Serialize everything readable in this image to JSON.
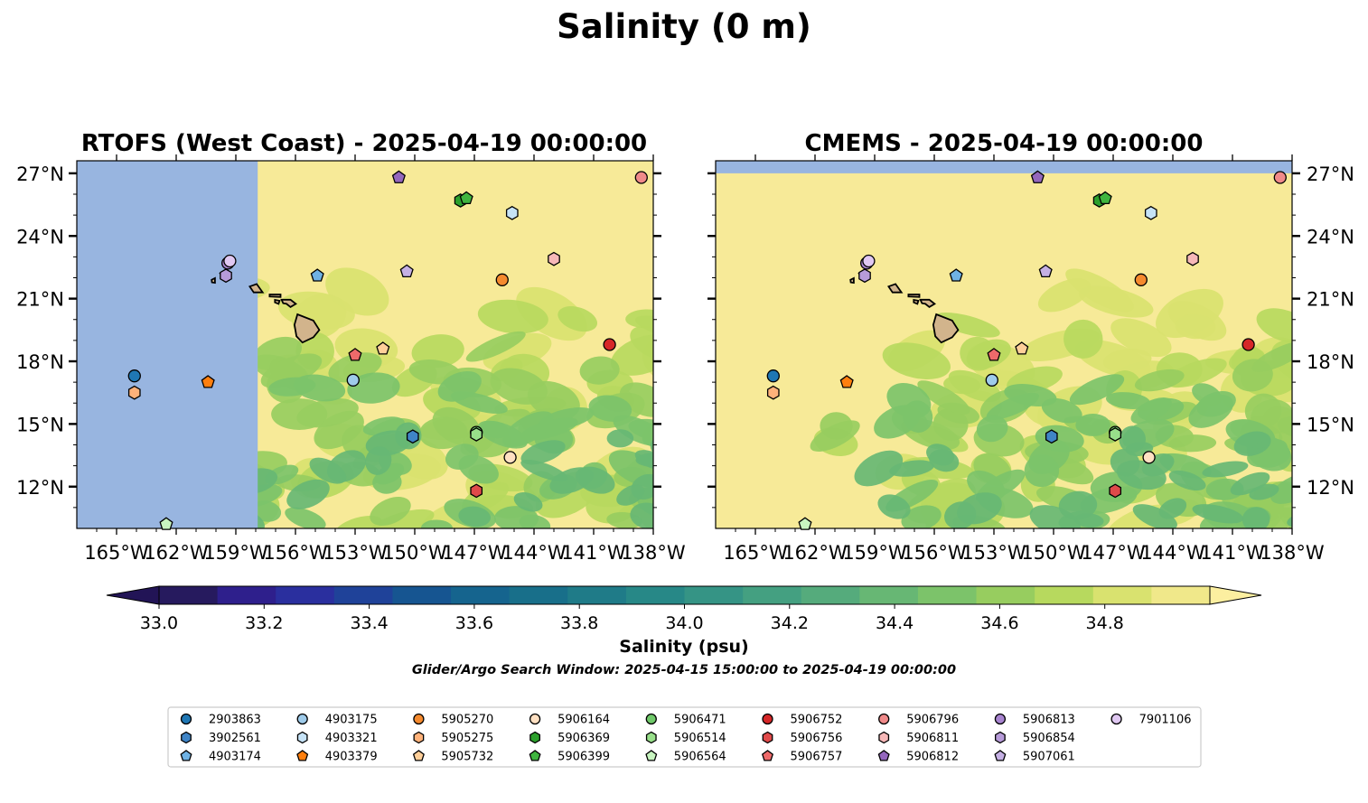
{
  "figure": {
    "title": "Salinity (0 m)",
    "note": "Glider/Argo Search Window: 2025-04-15 15:00:00 to 2025-04-19 00:00:00"
  },
  "colors": {
    "land": "#d2b48c",
    "missing_data": "#98b5e0",
    "colormap": [
      "#261a5e",
      "#2e1f8c",
      "#2a2f9e",
      "#1f4299",
      "#165591",
      "#15648e",
      "#186f8a",
      "#1f7b88",
      "#278887",
      "#359485",
      "#44a081",
      "#55ab7c",
      "#67b774",
      "#7cc36a",
      "#97cd5f",
      "#b7d95e",
      "#d9e26f",
      "#f0e88a"
    ],
    "over": "#fcefa0",
    "under": "#221456"
  },
  "chart_data": [
    {
      "type": "heatmap",
      "panel": "left",
      "title": "RTOFS (West Coast) - 2025-04-19 00:00:00",
      "variable": "Salinity",
      "units": "psu",
      "xlim": [
        -167,
        -138
      ],
      "ylim": [
        10,
        27.6
      ],
      "x_ticks": [
        "165°W",
        "162°W",
        "159°W",
        "156°W",
        "153°W",
        "150°W",
        "147°W",
        "144°W",
        "141°W",
        "138°W"
      ],
      "y_ticks": [
        "27°N",
        "24°N",
        "21°N",
        "18°N",
        "15°N",
        "12°N"
      ],
      "y_tick_side": "left",
      "model_coverage_west_edge_lon": -157.9,
      "value_range_shown": [
        34.3,
        35.0
      ]
    },
    {
      "type": "heatmap",
      "panel": "right",
      "title": "CMEMS - 2025-04-19 00:00:00",
      "variable": "Salinity",
      "units": "psu",
      "xlim": [
        -167,
        -138
      ],
      "ylim": [
        10,
        27.6
      ],
      "x_ticks": [
        "165°W",
        "162°W",
        "159°W",
        "156°W",
        "153°W",
        "150°W",
        "147°W",
        "144°W",
        "141°W",
        "138°W"
      ],
      "y_ticks": [
        "27°N",
        "24°N",
        "21°N",
        "18°N",
        "15°N",
        "12°N"
      ],
      "y_tick_side": "right",
      "model_coverage_north_edge_lat": 27.0,
      "value_range_shown": [
        34.3,
        35.0
      ]
    },
    {
      "type": "scatter",
      "name": "float_positions",
      "points": [
        {
          "id": "2903863",
          "lon": -164.1,
          "lat": 17.3,
          "marker": "circle",
          "color": "#1f77b4"
        },
        {
          "id": "3902561",
          "lon": -150.1,
          "lat": 14.4,
          "marker": "hexagon",
          "color": "#3f84c6"
        },
        {
          "id": "4903174",
          "lon": -154.9,
          "lat": 22.1,
          "marker": "pentagon",
          "color": "#6fb2e4"
        },
        {
          "id": "4903175",
          "lon": -153.1,
          "lat": 17.1,
          "marker": "circle",
          "color": "#9fcbea"
        },
        {
          "id": "4903321",
          "lon": -145.1,
          "lat": 25.1,
          "marker": "hexagon",
          "color": "#c6e3f7"
        },
        {
          "id": "4903379",
          "lon": -160.4,
          "lat": 17.0,
          "marker": "pentagon",
          "color": "#ff7f0e"
        },
        {
          "id": "5905270",
          "lon": -145.6,
          "lat": 21.9,
          "marker": "circle",
          "color": "#f58a2e"
        },
        {
          "id": "5905275",
          "lon": -164.1,
          "lat": 16.5,
          "marker": "hexagon",
          "color": "#ffb27a"
        },
        {
          "id": "5905732",
          "lon": -151.6,
          "lat": 18.6,
          "marker": "pentagon",
          "color": "#ffcf99"
        },
        {
          "id": "5906164",
          "lon": -145.2,
          "lat": 13.4,
          "marker": "circle",
          "color": "#ffe0c2"
        },
        {
          "id": "5906369",
          "lon": -147.7,
          "lat": 25.7,
          "marker": "hexagon",
          "color": "#2ca02c"
        },
        {
          "id": "5906399",
          "lon": -147.4,
          "lat": 25.8,
          "marker": "pentagon",
          "color": "#3fb53f"
        },
        {
          "id": "5906471",
          "lon": -146.9,
          "lat": 14.6,
          "marker": "circle",
          "color": "#70c96a"
        },
        {
          "id": "5906514",
          "lon": -146.9,
          "lat": 14.5,
          "marker": "hexagon",
          "color": "#98df8a"
        },
        {
          "id": "5906564",
          "lon": -162.5,
          "lat": 10.2,
          "marker": "pentagon",
          "color": "#c8f5c0"
        },
        {
          "id": "5906752",
          "lon": -140.2,
          "lat": 18.8,
          "marker": "circle",
          "color": "#d62728"
        },
        {
          "id": "5906756",
          "lon": -146.9,
          "lat": 11.8,
          "marker": "hexagon",
          "color": "#e04a4a"
        },
        {
          "id": "5906757",
          "lon": -153.0,
          "lat": 18.3,
          "marker": "pentagon",
          "color": "#ee6a6a"
        },
        {
          "id": "5906796",
          "lon": -138.6,
          "lat": 26.8,
          "marker": "circle",
          "color": "#f08a8a"
        },
        {
          "id": "5906811",
          "lon": -143.0,
          "lat": 22.9,
          "marker": "hexagon",
          "color": "#f7b8b8"
        },
        {
          "id": "5906812",
          "lon": -150.8,
          "lat": 26.8,
          "marker": "pentagon",
          "color": "#9467bd"
        },
        {
          "id": "5906813",
          "lon": -159.4,
          "lat": 22.7,
          "marker": "circle",
          "color": "#a884d0"
        },
        {
          "id": "5906854",
          "lon": -159.5,
          "lat": 22.1,
          "marker": "hexagon",
          "color": "#b79bd9"
        },
        {
          "id": "5907061",
          "lon": -150.4,
          "lat": 22.3,
          "marker": "pentagon",
          "color": "#c5b0e4"
        },
        {
          "id": "7901106",
          "lon": -159.3,
          "lat": 22.8,
          "marker": "circle",
          "color": "#e0c8f2"
        }
      ]
    },
    {
      "type": "colorbar",
      "label": "Salinity (psu)",
      "min": 33.0,
      "max": 34.9,
      "step": 0.1,
      "ticks": [
        "33.0",
        "33.2",
        "33.4",
        "33.6",
        "33.8",
        "34.0",
        "34.2",
        "34.4",
        "34.6",
        "34.8"
      ],
      "extend": "both"
    }
  ],
  "legend": {
    "placement": "bottom",
    "columns": 9,
    "entries": [
      "2903863",
      "3902561",
      "4903174",
      "4903175",
      "4903321",
      "4903379",
      "5905270",
      "5905275",
      "5905732",
      "5906164",
      "5906369",
      "5906399",
      "5906471",
      "5906514",
      "5906564",
      "5906752",
      "5906756",
      "5906757",
      "5906796",
      "5906811",
      "5906812",
      "5906813",
      "5906854",
      "5907061",
      "7901106"
    ]
  }
}
